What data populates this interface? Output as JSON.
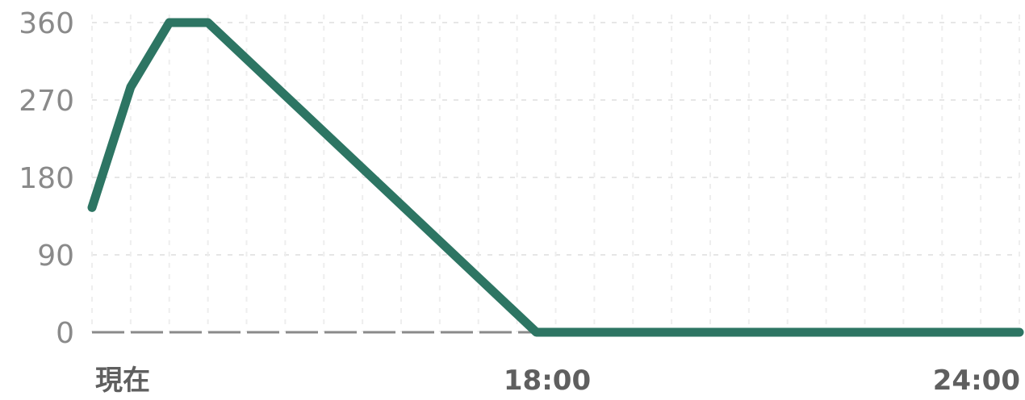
{
  "chart_data": {
    "type": "line",
    "title": "",
    "xlabel": "",
    "ylabel": "",
    "x_tick_labels": [
      "現在",
      "18:00",
      "24:00"
    ],
    "y_ticks": [
      0,
      90,
      180,
      270,
      360
    ],
    "ylim": [
      0,
      360
    ],
    "grid": true,
    "grid_style": "dotted",
    "series": [
      {
        "color": "#2d7563",
        "points": [
          {
            "x": 0,
            "y": 145
          },
          {
            "x": 1,
            "y": 285
          },
          {
            "x": 2,
            "y": 360
          },
          {
            "x": 3,
            "y": 360
          },
          {
            "x": 11.5,
            "y": 0
          },
          {
            "x": 24,
            "y": 0
          }
        ]
      }
    ],
    "baseline_color": "#8a8a8a"
  }
}
